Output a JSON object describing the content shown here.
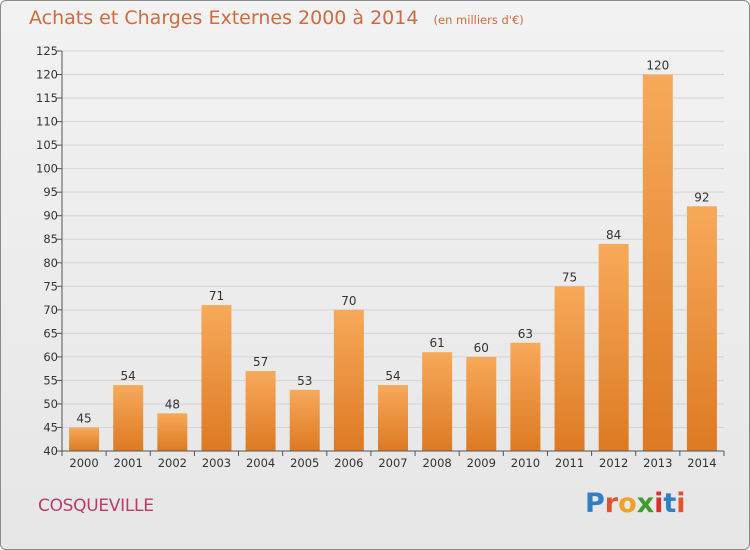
{
  "title": "Achats et Charges Externes 2000 à 2014",
  "unit_note": "(en milliers d'€)",
  "city": "COSQUEVILLE",
  "brand": "Proxiti",
  "colors": {
    "bar_top": "#f7a95a",
    "bar_bottom": "#dd7a23",
    "title": "#d26a3e",
    "city": "#c0396b",
    "axis_text": "#333333",
    "grid": "#d4d4d4"
  },
  "chart_data": {
    "type": "bar",
    "title": "Achats et Charges Externes 2000 à 2014",
    "xlabel": "",
    "ylabel": "",
    "ylim": [
      40,
      125
    ],
    "yticks": [
      40,
      45,
      50,
      55,
      60,
      65,
      70,
      75,
      80,
      85,
      90,
      95,
      100,
      105,
      110,
      115,
      120,
      125
    ],
    "grid": true,
    "categories": [
      "2000",
      "2001",
      "2002",
      "2003",
      "2004",
      "2005",
      "2006",
      "2007",
      "2008",
      "2009",
      "2010",
      "2011",
      "2012",
      "2013",
      "2014"
    ],
    "values": [
      45,
      54,
      48,
      71,
      57,
      53,
      70,
      54,
      61,
      60,
      63,
      75,
      84,
      120,
      92
    ]
  }
}
